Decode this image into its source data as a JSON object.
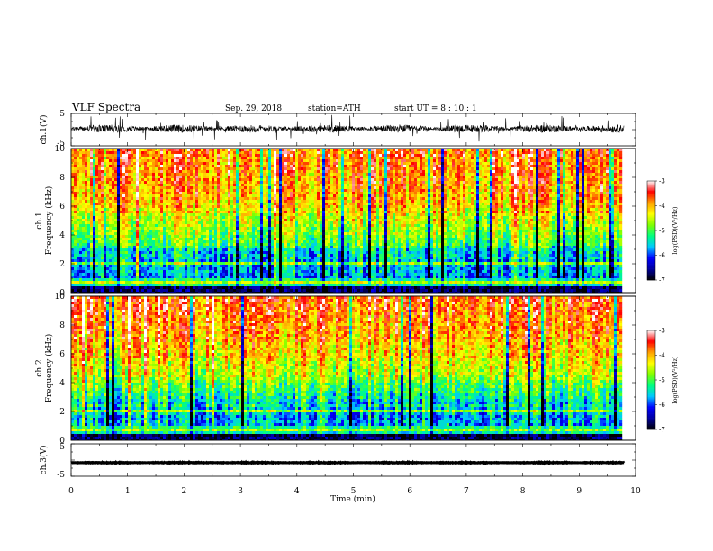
{
  "header": {
    "title": "VLF  Spectra",
    "date": "Sep. 29, 2018",
    "station": "station=ATH",
    "start": "start  UT  =   8  : 10 : 1"
  },
  "chart_data": {
    "type": "heatmap",
    "title": "VLF  Spectra",
    "xlabel": "Time  (min)",
    "xlim": [
      0,
      10
    ],
    "x_ticks": [
      "0",
      "1",
      "2",
      "3",
      "4",
      "5",
      "6",
      "7",
      "8",
      "9",
      "10"
    ],
    "data_end_min": 9.8,
    "panels": [
      {
        "id": "ch1-waveform",
        "type": "line",
        "ylabel": "ch.1(V)",
        "ylim": [
          -5,
          5
        ],
        "y_ticks": [
          "5",
          "-5"
        ],
        "baseline": 0.3,
        "noise_amplitude": 1.2,
        "color": "#000000"
      },
      {
        "id": "ch1-spectrogram",
        "type": "heatmap",
        "ylabel_channel": "ch.1",
        "ylabel": "Frequency  (kHz)",
        "ylim": [
          0,
          10
        ],
        "y_ticks": [
          "0",
          "2",
          "4",
          "6",
          "8",
          "10"
        ],
        "colorbar": {
          "label": "log(PSD)(V²/Hz)",
          "range": [
            -7,
            -3
          ],
          "ticks": [
            "-3",
            "-4",
            "-5",
            "-6",
            "-7"
          ]
        }
      },
      {
        "id": "ch2-spectrogram",
        "type": "heatmap",
        "ylabel_channel": "ch.2",
        "ylabel": "Frequency  (kHz)",
        "ylim": [
          0,
          10
        ],
        "y_ticks": [
          "0",
          "2",
          "4",
          "6",
          "8",
          "10"
        ],
        "colorbar": {
          "label": "log(PSD)(V²/Hz)",
          "range": [
            -7,
            -3
          ],
          "ticks": [
            "-3",
            "-4",
            "-5",
            "-6",
            "-7"
          ]
        }
      },
      {
        "id": "ch3-waveform",
        "type": "line",
        "ylabel": "ch.3(V)",
        "ylim": [
          -5,
          5
        ],
        "y_ticks": [
          "5",
          "-5"
        ],
        "baseline": -0.8,
        "noise_amplitude": 0.1,
        "color": "#000000"
      }
    ],
    "colormap": [
      "#000000",
      "#0000a0",
      "#0000ff",
      "#00c8ff",
      "#00ff80",
      "#80ff00",
      "#ffff00",
      "#ffa000",
      "#ff0000",
      "#ffffff"
    ]
  }
}
